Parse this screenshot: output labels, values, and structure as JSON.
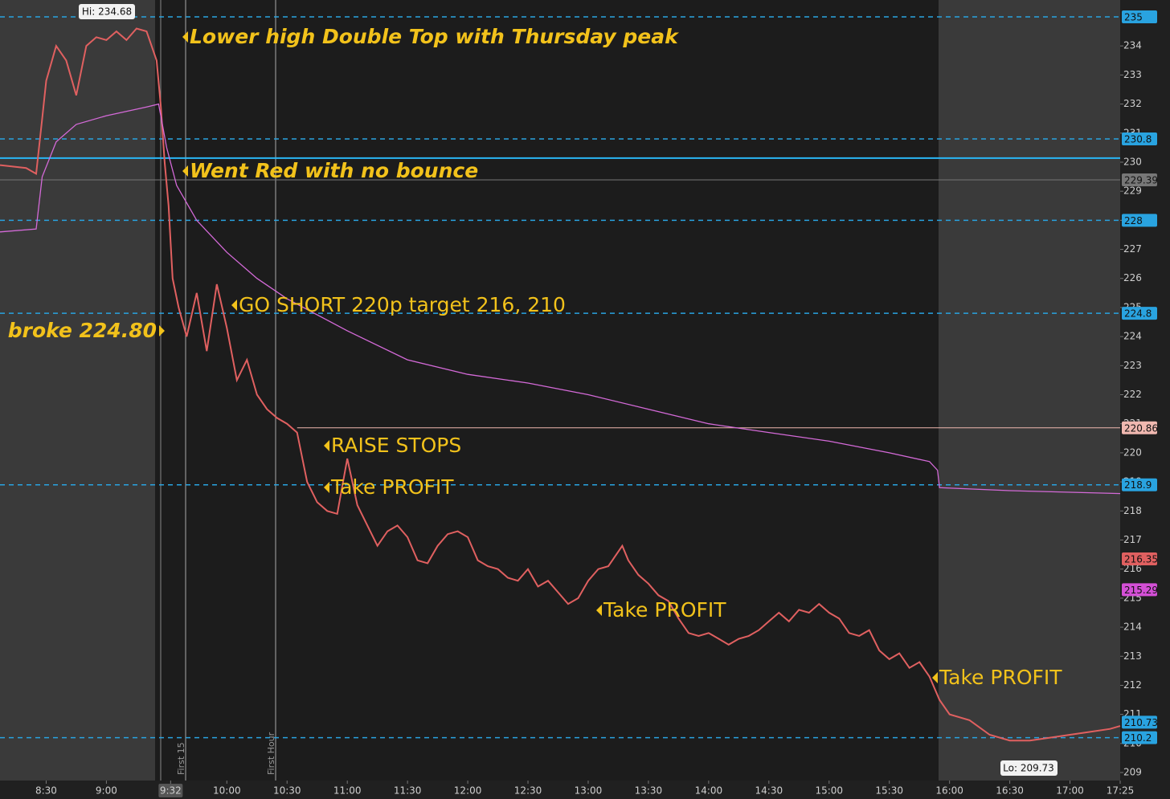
{
  "chart_data": {
    "type": "line",
    "xlim": [
      "8:07",
      "17:25"
    ],
    "ylim": [
      208.78,
      235.58
    ],
    "xticks": [
      "8:30",
      "9:00",
      "9:32",
      "10:00",
      "10:30",
      "11:00",
      "11:30",
      "12:00",
      "12:30",
      "13:00",
      "13:30",
      "14:00",
      "14:30",
      "15:00",
      "15:30",
      "16:00",
      "16:30",
      "17:00",
      "17:25"
    ],
    "yticks": [
      209,
      210,
      211,
      212,
      213,
      214,
      215,
      216,
      217,
      218,
      219,
      220,
      221,
      222,
      223,
      224,
      225,
      226,
      227,
      228,
      229,
      230,
      231,
      232,
      233,
      234
    ],
    "series": [
      {
        "color": "#e06060",
        "x": [
          "8:07",
          "8:20",
          "8:25",
          "8:28",
          "8:30",
          "8:35",
          "8:40",
          "8:45",
          "8:50",
          "8:55",
          "9:00",
          "9:05",
          "9:10",
          "9:15",
          "9:20",
          "9:25",
          "9:27",
          "9:29",
          "9:31",
          "9:33",
          "9:36",
          "9:40",
          "9:45",
          "9:50",
          "9:55",
          "10:00",
          "10:05",
          "10:10",
          "10:15",
          "10:20",
          "10:25",
          "10:30",
          "10:35",
          "10:40",
          "10:45",
          "10:50",
          "10:55",
          "11:00",
          "11:05",
          "11:10",
          "11:15",
          "11:20",
          "11:25",
          "11:30",
          "11:35",
          "11:40",
          "11:45",
          "11:50",
          "11:55",
          "12:00",
          "12:05",
          "12:10",
          "12:15",
          "12:20",
          "12:25",
          "12:30",
          "12:35",
          "12:40",
          "12:45",
          "12:50",
          "12:55",
          "13:00",
          "13:05",
          "13:10",
          "13:17",
          "13:20",
          "13:25",
          "13:30",
          "13:35",
          "13:40",
          "13:45",
          "13:50",
          "13:55",
          "14:00",
          "14:05",
          "14:10",
          "14:15",
          "14:20",
          "14:25",
          "14:30",
          "14:35",
          "14:40",
          "14:45",
          "14:50",
          "14:55",
          "15:00",
          "15:05",
          "15:10",
          "15:15",
          "15:20",
          "15:25",
          "15:30",
          "15:35",
          "15:40",
          "15:45",
          "15:50",
          "15:55",
          "16:00",
          "16:10",
          "16:20",
          "16:30",
          "16:40",
          "16:50",
          "17:00",
          "17:10",
          "17:20",
          "17:25"
        ],
        "values": [
          229.9,
          229.8,
          229.6,
          231.5,
          232.8,
          234.0,
          233.5,
          232.3,
          234.0,
          234.3,
          234.2,
          234.5,
          234.2,
          234.6,
          234.5,
          233.5,
          232.0,
          230.0,
          228.5,
          226.0,
          225.0,
          224.0,
          225.5,
          223.5,
          225.8,
          224.3,
          222.5,
          223.2,
          222.0,
          221.5,
          221.2,
          221.0,
          220.7,
          219.0,
          218.3,
          218.0,
          217.9,
          219.8,
          218.2,
          217.5,
          216.8,
          217.3,
          217.5,
          217.1,
          216.3,
          216.2,
          216.8,
          217.2,
          217.3,
          217.1,
          216.3,
          216.1,
          216.0,
          215.7,
          215.6,
          216.0,
          215.4,
          215.6,
          215.2,
          214.8,
          215.0,
          215.6,
          216.0,
          216.1,
          216.8,
          216.3,
          215.8,
          215.5,
          215.1,
          214.9,
          214.3,
          213.8,
          213.7,
          213.8,
          213.6,
          213.4,
          213.6,
          213.7,
          213.9,
          214.2,
          214.5,
          214.2,
          214.6,
          214.5,
          214.8,
          214.5,
          214.3,
          213.8,
          213.7,
          213.9,
          213.2,
          212.9,
          213.1,
          212.6,
          212.8,
          212.3,
          211.5,
          211.0,
          210.8,
          210.3,
          210.1,
          210.1,
          210.2,
          210.3,
          210.4,
          210.5,
          210.6
        ]
      },
      {
        "color": "#d46ad8",
        "x": [
          "8:07",
          "8:25",
          "8:28",
          "8:35",
          "8:45",
          "9:00",
          "9:20",
          "9:26",
          "9:30",
          "9:35",
          "9:45",
          "10:00",
          "10:15",
          "10:30",
          "11:00",
          "11:30",
          "12:00",
          "12:30",
          "13:00",
          "13:30",
          "14:00",
          "14:30",
          "15:00",
          "15:30",
          "15:50",
          "15:54",
          "15:55",
          "16:30",
          "17:25"
        ],
        "values": [
          227.6,
          227.7,
          229.5,
          230.7,
          231.3,
          231.6,
          231.9,
          232.0,
          230.5,
          229.2,
          228.0,
          226.9,
          226.0,
          225.3,
          224.2,
          223.2,
          222.7,
          222.4,
          222.0,
          221.5,
          221.0,
          220.7,
          220.4,
          220.0,
          219.7,
          219.4,
          218.8,
          218.7,
          218.6
        ]
      }
    ],
    "levels": [
      {
        "value": 235,
        "color": "#29a3e0",
        "style": "dashed"
      },
      {
        "value": 230.8,
        "color": "#29a3e0",
        "style": "dashed"
      },
      {
        "value": 229.39,
        "color": "#777777",
        "style": "solid"
      },
      {
        "value": 228,
        "color": "#29a3e0",
        "style": "dashed"
      },
      {
        "value": 224.8,
        "color": "#29a3e0",
        "style": "dashed"
      },
      {
        "value": 220.86,
        "color": "#f0b8b0",
        "style": "solid",
        "from": "10:35"
      },
      {
        "value": 218.9,
        "color": "#29a3e0",
        "style": "dashed"
      },
      {
        "value": 210.2,
        "color": "#29a3e0",
        "style": "dashed"
      }
    ],
    "reference_lines": [
      {
        "value": 230.14,
        "color": "#29b6f6"
      }
    ],
    "price_tags": [
      {
        "value": 216.35,
        "color": "#e06060"
      },
      {
        "value": 215.29,
        "color": "#d44fd6"
      },
      {
        "value": 210.73,
        "color": "#29a3e0"
      }
    ],
    "high_label": "Hi: 234.68",
    "low_label": "Lo: 209.73",
    "session_labels": [
      "First 15",
      "First Hour"
    ],
    "annotations": [
      "Lower high Double Top with Thursday peak",
      "Went Red with no bounce",
      "GO SHORT 220p target 216, 210",
      "broke 224.80",
      "RAISE STOPS",
      "Take PROFIT",
      "Take PROFIT",
      "Take PROFIT"
    ]
  }
}
